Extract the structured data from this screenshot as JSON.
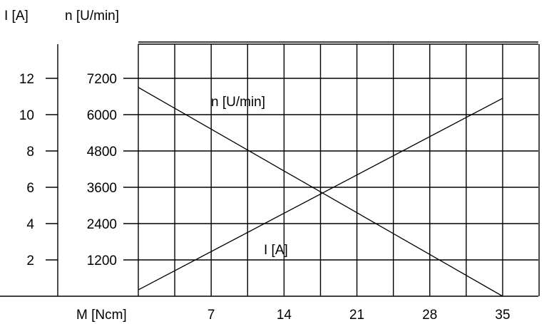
{
  "chart_data": {
    "type": "line",
    "x_axis": {
      "label": "M [Ncm]",
      "ticks": [
        7,
        14,
        21,
        28,
        35
      ],
      "range": [
        0,
        35
      ]
    },
    "y_axes": [
      {
        "label": "I [A]",
        "ticks": [
          2,
          4,
          6,
          8,
          10,
          12
        ],
        "range": [
          0,
          14
        ]
      },
      {
        "label": "n [U/min]",
        "ticks": [
          1200,
          2400,
          3600,
          4800,
          6000,
          7200
        ],
        "range": [
          0,
          8400
        ]
      }
    ],
    "grid": true,
    "series": [
      {
        "name": "n [U/min]",
        "axis": "n [U/min]",
        "x": [
          0,
          35
        ],
        "y": [
          6900,
          0
        ]
      },
      {
        "name": "I [A]",
        "axis": "I [A]",
        "x": [
          0,
          35
        ],
        "y": [
          0.35,
          10.9
        ]
      }
    ]
  }
}
